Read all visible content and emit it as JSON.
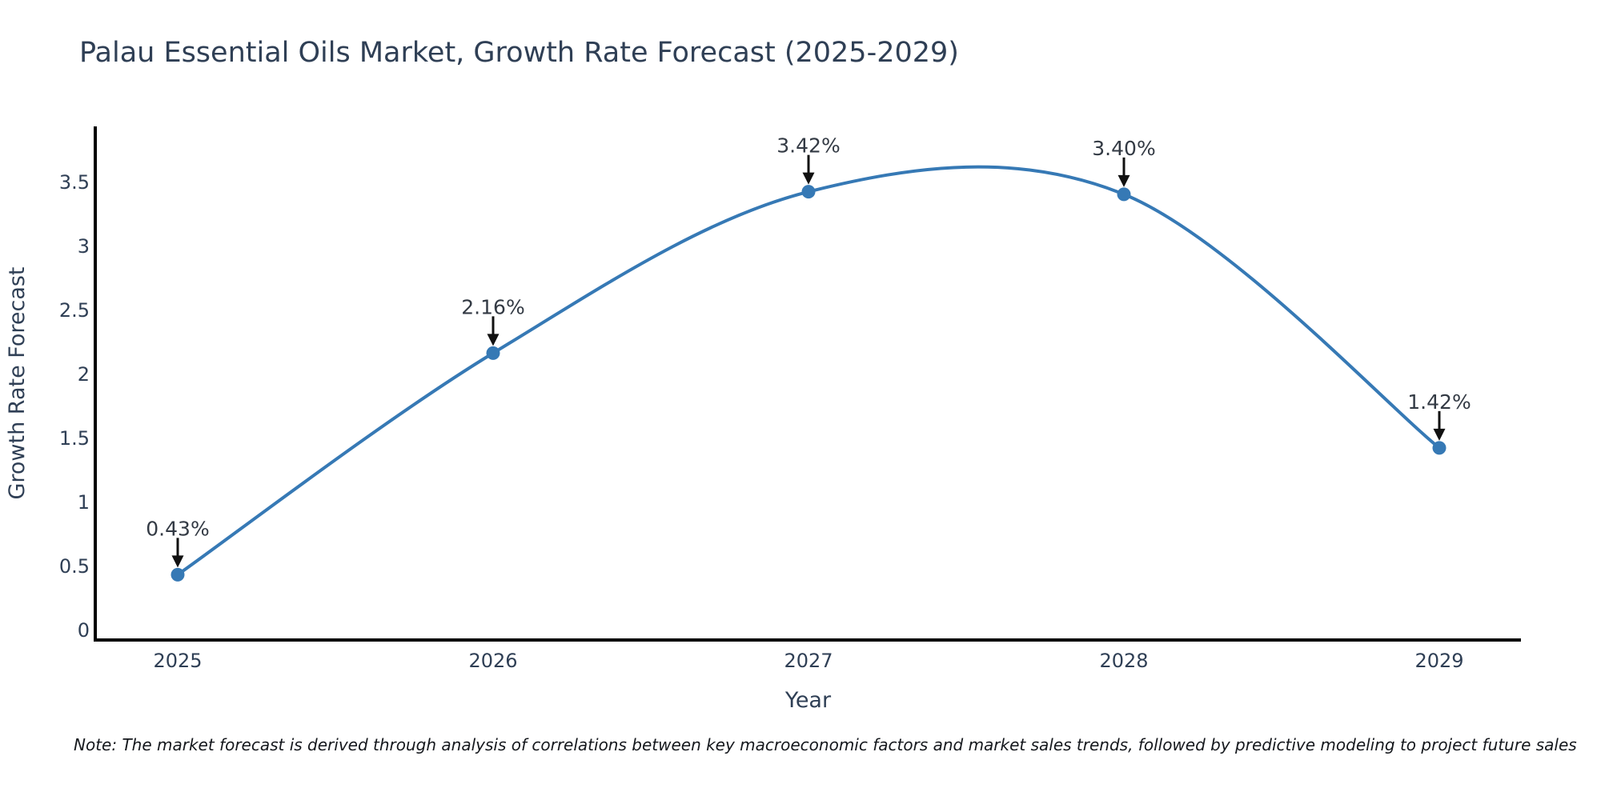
{
  "chart_data": {
    "type": "line",
    "title": "Palau Essential Oils Market, Growth Rate Forecast (2025-2029)",
    "xlabel": "Year",
    "ylabel": "Growth Rate Forecast",
    "x": [
      "2025",
      "2026",
      "2027",
      "2028",
      "2029"
    ],
    "values": [
      0.43,
      2.16,
      3.42,
      3.4,
      1.42
    ],
    "point_labels": [
      "0.43%",
      "2.16%",
      "3.42%",
      "3.40%",
      "1.42%"
    ],
    "ytick_values": [
      0,
      0.5,
      1,
      1.5,
      2,
      2.5,
      3,
      3.5
    ],
    "ytick_labels": [
      "0",
      "0.5",
      "1",
      "1.5",
      "2",
      "2.5",
      "3",
      "3.5"
    ],
    "ylim": [
      -0.08,
      3.93
    ],
    "grid": false,
    "legend": null,
    "curve": "smooth-spline",
    "markers": "circle",
    "annotations": "value-labels-with-down-arrows",
    "colors": {
      "line": "#3679b5",
      "marker": "#3679b5",
      "axis": "#000000",
      "tick_text": "#2f3f55",
      "title_text": "#2f3f55",
      "annotation_text": "#333a44",
      "arrow": "#111111",
      "background": "#ffffff"
    },
    "note": "Note: The market forecast is derived through analysis of correlations between key macroeconomic factors and market sales trends, followed by predictive modeling to project future sales"
  }
}
